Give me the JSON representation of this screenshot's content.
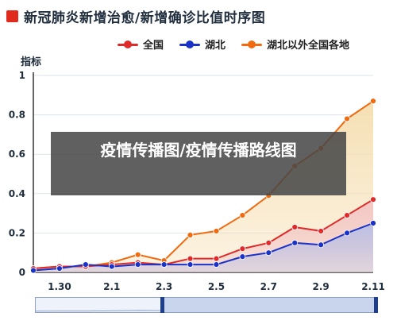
{
  "header": {
    "title": "新冠肺炎新增治愈/新增确诊比值时序图"
  },
  "watermark": {
    "text": "疫情传播图/疫情传播路线图"
  },
  "chart_data": {
    "type": "area",
    "title": "新冠肺炎新增治愈/新增确诊比值时序图",
    "ylabel": "指标",
    "xlabel": "",
    "ylim": [
      0,
      1
    ],
    "yticks": [
      0,
      0.2,
      0.4,
      0.6,
      0.8,
      1
    ],
    "ytick_labels": [
      "0",
      "0.2",
      "0.4",
      "0.6",
      "0.8",
      "1"
    ],
    "xtick_labels": [
      "1.30",
      "2.1",
      "2.3",
      "2.5",
      "2.7",
      "2.9",
      "2.11"
    ],
    "x": [
      "1.29",
      "1.30",
      "1.31",
      "2.1",
      "2.2",
      "2.3",
      "2.4",
      "2.5",
      "2.6",
      "2.7",
      "2.8",
      "2.9",
      "2.10",
      "2.11"
    ],
    "legend_position": "top",
    "grid": true,
    "series": [
      {
        "name": "全国",
        "color": "#e02a2a",
        "fill": "#f2c4c4",
        "values": [
          0.02,
          0.03,
          0.03,
          0.04,
          0.05,
          0.04,
          0.07,
          0.07,
          0.12,
          0.15,
          0.23,
          0.21,
          0.29,
          0.37
        ]
      },
      {
        "name": "湖北",
        "color": "#1a32c8",
        "fill": "#b9bfe6",
        "values": [
          0.01,
          0.02,
          0.04,
          0.03,
          0.04,
          0.04,
          0.04,
          0.04,
          0.08,
          0.1,
          0.15,
          0.14,
          0.2,
          0.25
        ]
      },
      {
        "name": "湖北以外全国各地",
        "color": "#f06a10",
        "fill": "#f5deb0",
        "values": [
          0.02,
          0.03,
          0.03,
          0.05,
          0.09,
          0.06,
          0.19,
          0.21,
          0.29,
          0.39,
          0.54,
          0.63,
          0.78,
          0.87
        ]
      }
    ]
  }
}
